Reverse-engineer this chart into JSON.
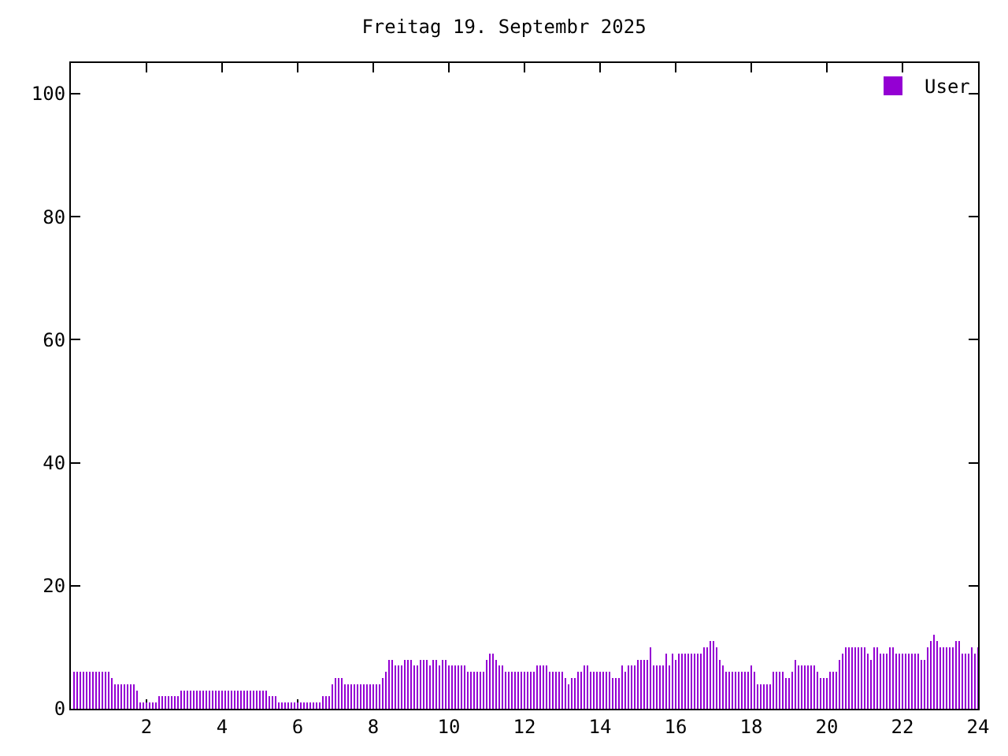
{
  "chart_data": {
    "type": "bar",
    "title": "Freitag 19. Septembr 2025",
    "x": [
      0.083,
      0.167,
      0.25,
      0.333,
      0.417,
      0.5,
      0.583,
      0.667,
      0.75,
      0.833,
      0.917,
      1,
      1.083,
      1.167,
      1.25,
      1.333,
      1.417,
      1.5,
      1.583,
      1.667,
      1.75,
      1.833,
      1.917,
      2,
      2.083,
      2.167,
      2.25,
      2.333,
      2.417,
      2.5,
      2.583,
      2.667,
      2.75,
      2.833,
      2.917,
      3,
      3.083,
      3.167,
      3.25,
      3.333,
      3.417,
      3.5,
      3.583,
      3.667,
      3.75,
      3.833,
      3.917,
      4,
      4.083,
      4.167,
      4.25,
      4.333,
      4.417,
      4.5,
      4.583,
      4.667,
      4.75,
      4.833,
      4.917,
      5,
      5.083,
      5.167,
      5.25,
      5.333,
      5.417,
      5.5,
      5.583,
      5.667,
      5.75,
      5.833,
      5.917,
      6,
      6.083,
      6.167,
      6.25,
      6.333,
      6.417,
      6.5,
      6.583,
      6.667,
      6.75,
      6.833,
      6.917,
      7,
      7.083,
      7.167,
      7.25,
      7.333,
      7.417,
      7.5,
      7.583,
      7.667,
      7.75,
      7.833,
      7.917,
      8,
      8.083,
      8.167,
      8.25,
      8.333,
      8.417,
      8.5,
      8.583,
      8.667,
      8.75,
      8.833,
      8.917,
      9,
      9.083,
      9.167,
      9.25,
      9.333,
      9.417,
      9.5,
      9.583,
      9.667,
      9.75,
      9.833,
      9.917,
      10,
      10.083,
      10.167,
      10.25,
      10.333,
      10.417,
      10.5,
      10.583,
      10.667,
      10.75,
      10.833,
      10.917,
      11,
      11.083,
      11.167,
      11.25,
      11.333,
      11.417,
      11.5,
      11.583,
      11.667,
      11.75,
      11.833,
      11.917,
      12,
      12.083,
      12.167,
      12.25,
      12.333,
      12.417,
      12.5,
      12.583,
      12.667,
      12.75,
      12.833,
      12.917,
      13,
      13.083,
      13.167,
      13.25,
      13.333,
      13.417,
      13.5,
      13.583,
      13.667,
      13.75,
      13.833,
      13.917,
      14,
      14.083,
      14.167,
      14.25,
      14.333,
      14.417,
      14.5,
      14.583,
      14.667,
      14.75,
      14.833,
      14.917,
      15,
      15.083,
      15.167,
      15.25,
      15.333,
      15.417,
      15.5,
      15.583,
      15.667,
      15.75,
      15.833,
      15.917,
      16,
      16.083,
      16.167,
      16.25,
      16.333,
      16.417,
      16.5,
      16.583,
      16.667,
      16.75,
      16.833,
      16.917,
      17,
      17.083,
      17.167,
      17.25,
      17.333,
      17.417,
      17.5,
      17.583,
      17.667,
      17.75,
      17.833,
      17.917,
      18,
      18.083,
      18.167,
      18.25,
      18.333,
      18.417,
      18.5,
      18.583,
      18.667,
      18.75,
      18.833,
      18.917,
      19,
      19.083,
      19.167,
      19.25,
      19.333,
      19.417,
      19.5,
      19.583,
      19.667,
      19.75,
      19.833,
      19.917,
      20,
      20.083,
      20.167,
      20.25,
      20.333,
      20.417,
      20.5,
      20.583,
      20.667,
      20.75,
      20.833,
      20.917,
      21,
      21.083,
      21.167,
      21.25,
      21.333,
      21.417,
      21.5,
      21.583,
      21.667,
      21.75,
      21.833,
      21.917,
      22,
      22.083,
      22.167,
      22.25,
      22.333,
      22.417,
      22.5,
      22.583,
      22.667,
      22.75,
      22.833,
      22.917,
      23,
      23.083,
      23.167,
      23.25,
      23.333,
      23.417,
      23.5,
      23.583,
      23.667,
      23.75,
      23.833,
      23.917,
      24
    ],
    "series": [
      {
        "name": "User",
        "color": "#9400d3",
        "values": [
          6,
          6,
          6,
          6,
          6,
          6,
          6,
          6,
          6,
          6,
          6,
          6,
          5,
          4,
          4,
          4,
          4,
          4,
          4,
          4,
          3,
          1,
          1,
          1,
          1,
          1,
          1,
          2,
          2,
          2,
          2,
          2,
          2,
          2,
          3,
          3,
          3,
          3,
          3,
          3,
          3,
          3,
          3,
          3,
          3,
          3,
          3,
          3,
          3,
          3,
          3,
          3,
          3,
          3,
          3,
          3,
          3,
          3,
          3,
          3,
          3,
          3,
          2,
          2,
          2,
          1,
          1,
          1,
          1,
          1,
          1,
          1,
          1,
          1,
          1,
          1,
          1,
          1,
          1,
          2,
          2,
          2,
          4,
          5,
          5,
          5,
          4,
          4,
          4,
          4,
          4,
          4,
          4,
          4,
          4,
          4,
          4,
          4,
          5,
          6,
          8,
          8,
          7,
          7,
          7,
          8,
          8,
          8,
          7,
          7,
          8,
          8,
          8,
          7,
          8,
          8,
          7,
          8,
          8,
          7,
          7,
          7,
          7,
          7,
          7,
          6,
          6,
          6,
          6,
          6,
          6,
          8,
          9,
          9,
          8,
          7,
          7,
          6,
          6,
          6,
          6,
          6,
          6,
          6,
          6,
          6,
          6,
          7,
          7,
          7,
          7,
          6,
          6,
          6,
          6,
          6,
          5,
          4,
          5,
          5,
          6,
          6,
          7,
          7,
          6,
          6,
          6,
          6,
          6,
          6,
          6,
          5,
          5,
          5,
          7,
          6,
          7,
          7,
          7,
          8,
          8,
          8,
          8,
          10,
          7,
          7,
          7,
          7,
          9,
          7,
          9,
          8,
          9,
          9,
          9,
          9,
          9,
          9,
          9,
          9,
          10,
          10,
          11,
          11,
          10,
          8,
          7,
          6,
          6,
          6,
          6,
          6,
          6,
          6,
          6,
          7,
          6,
          4,
          4,
          4,
          4,
          4,
          6,
          6,
          6,
          6,
          5,
          5,
          6,
          8,
          7,
          7,
          7,
          7,
          7,
          7,
          6,
          5,
          5,
          5,
          6,
          6,
          6,
          8,
          9,
          10,
          10,
          10,
          10,
          10,
          10,
          10,
          9,
          8,
          10,
          10,
          9,
          9,
          9,
          10,
          10,
          9,
          9,
          9,
          9,
          9,
          9,
          9,
          9,
          8,
          8,
          10,
          11,
          12,
          11,
          10,
          10,
          10,
          10,
          10,
          11,
          11,
          9,
          9,
          9,
          10,
          9,
          10
        ]
      }
    ],
    "xlim": [
      0,
      24
    ],
    "xticks": [
      2,
      4,
      6,
      8,
      10,
      12,
      14,
      16,
      18,
      20,
      22,
      24
    ],
    "ylim": [
      0,
      105
    ],
    "yticks": [
      0,
      20,
      40,
      60,
      80,
      100
    ],
    "legend": "top right"
  }
}
